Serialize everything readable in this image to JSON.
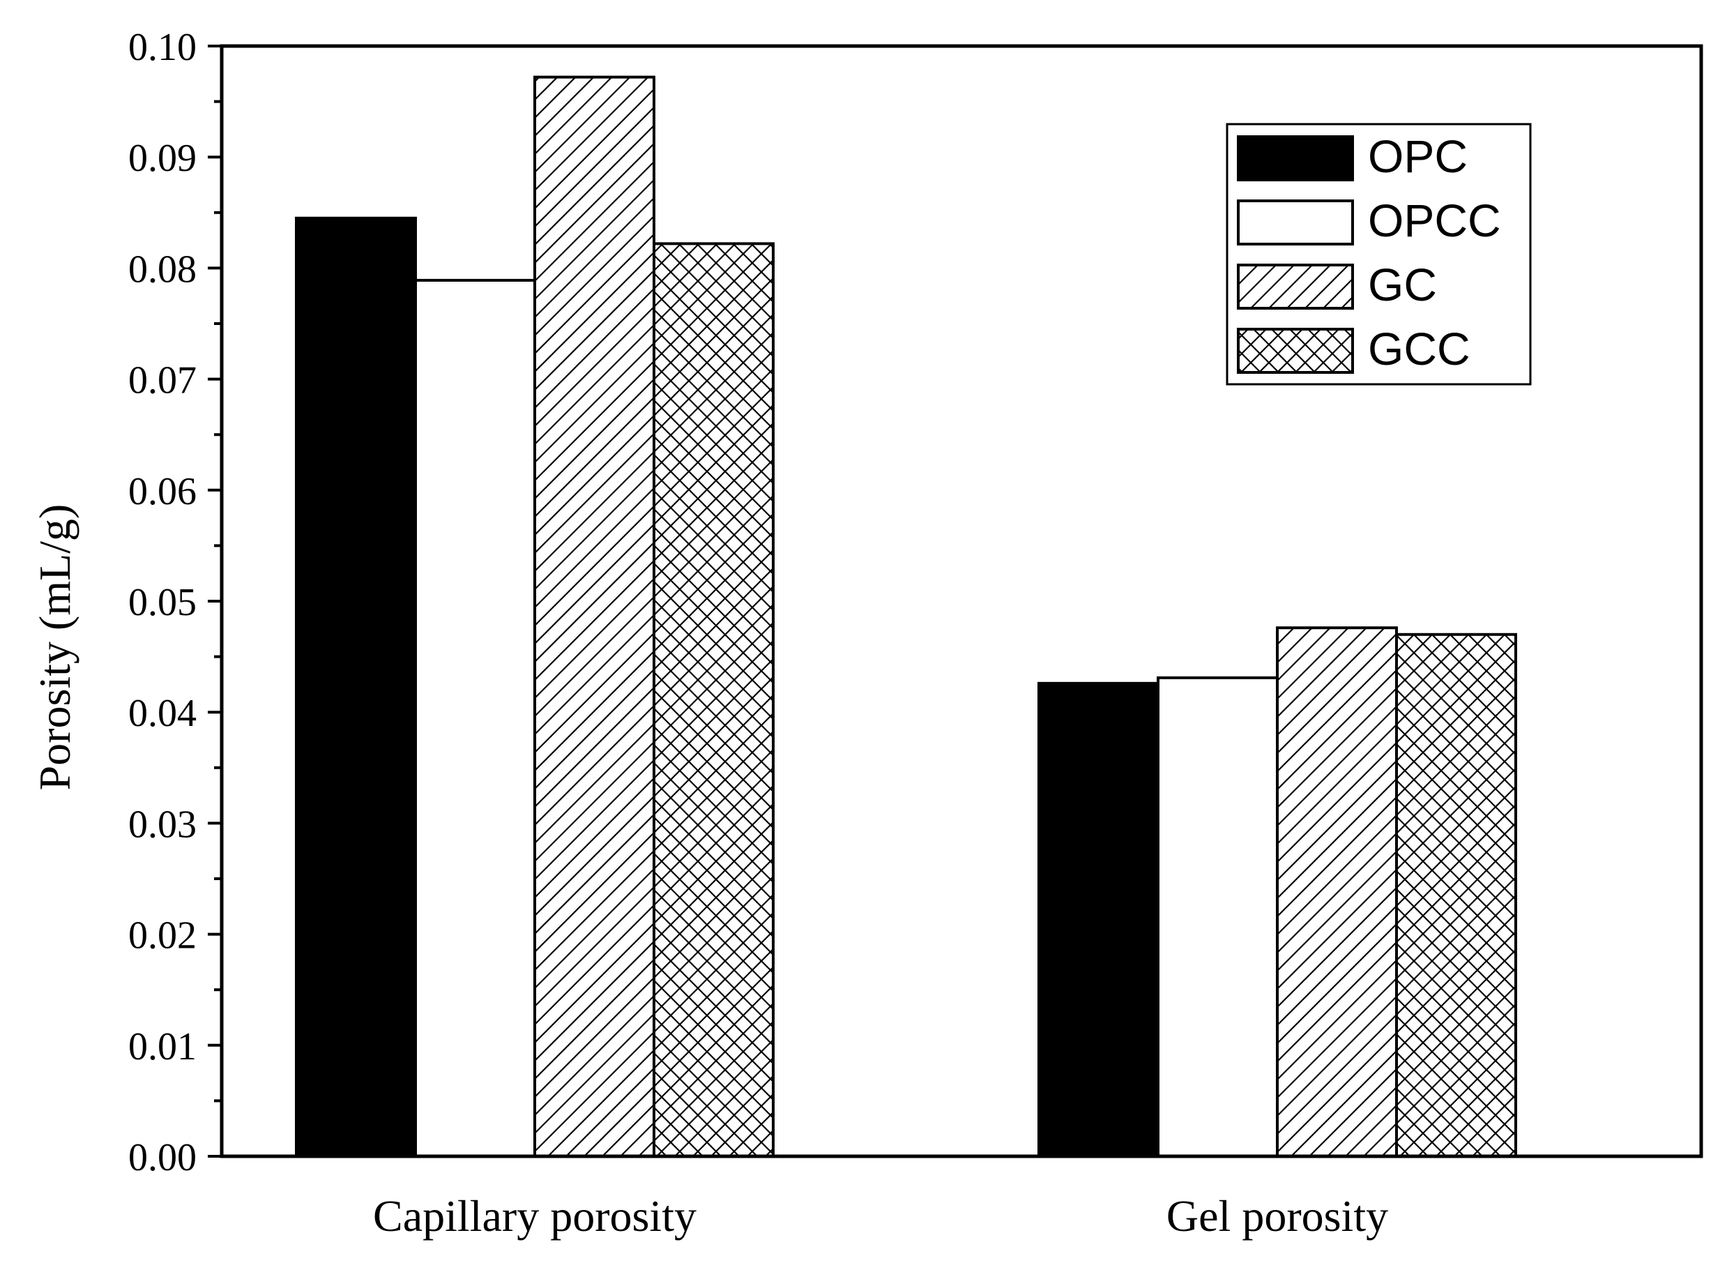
{
  "chart_data": {
    "type": "bar",
    "title": "",
    "xlabel": "",
    "ylabel": "Porosity (mL/g)",
    "categories": [
      "Capillary porosity",
      "Gel porosity"
    ],
    "series": [
      {
        "name": "OPC",
        "pattern": "solid-black",
        "values": [
          0.0845,
          0.0426
        ]
      },
      {
        "name": "OPCC",
        "pattern": "white",
        "values": [
          0.0789,
          0.0431
        ]
      },
      {
        "name": "GC",
        "pattern": "diagonal",
        "values": [
          0.0972,
          0.0476
        ]
      },
      {
        "name": "GCC",
        "pattern": "crosshatch",
        "values": [
          0.0822,
          0.047
        ]
      }
    ],
    "ylim": [
      0.0,
      0.1
    ],
    "yticks": [
      "0.00",
      "0.01",
      "0.02",
      "0.03",
      "0.04",
      "0.05",
      "0.06",
      "0.07",
      "0.08",
      "0.09",
      "0.10"
    ],
    "legend_position": "top-right",
    "grid": false
  }
}
